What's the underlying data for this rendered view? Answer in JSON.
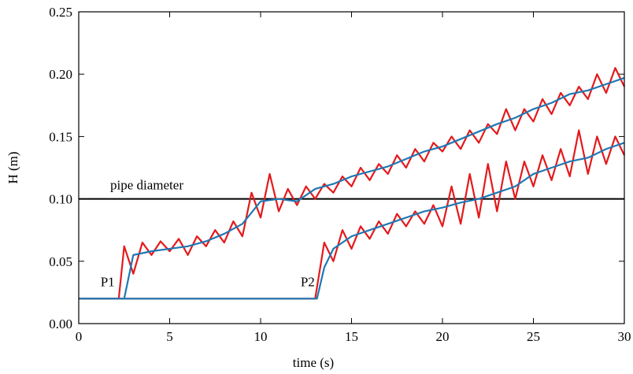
{
  "chart_data": {
    "type": "line",
    "xlabel": "time (s)",
    "ylabel": "H (m)",
    "xlim": [
      0,
      30
    ],
    "ylim": [
      0,
      0.25
    ],
    "xticks": [
      0,
      5,
      10,
      15,
      20,
      25,
      30
    ],
    "yticks": [
      {
        "value": 0,
        "label": "0.00"
      },
      0.05,
      {
        "value": 0.1,
        "label": "0.10"
      },
      0.15,
      {
        "value": 0.2,
        "label": "0.20"
      },
      0.25
    ],
    "grid": false,
    "reference_line": {
      "value": 0.1,
      "label": "pipe diameter",
      "color": "#000000"
    },
    "annotations": [
      {
        "text": "P1",
        "x": 1.2,
        "y": 0.03
      },
      {
        "text": "P2",
        "x": 12.2,
        "y": 0.03
      }
    ],
    "series": [
      {
        "color": "#e31a1c",
        "x": [
          0,
          2.2,
          2.5,
          3,
          3.5,
          4,
          4.5,
          5,
          5.5,
          6,
          6.5,
          7,
          7.5,
          8,
          8.5,
          9,
          9.5,
          10,
          10.5,
          11,
          11.5,
          12,
          12.5,
          13,
          13.5,
          14,
          14.5,
          15,
          15.5,
          16,
          16.5,
          17,
          17.5,
          18,
          18.5,
          19,
          19.5,
          20,
          20.5,
          21,
          21.5,
          22,
          22.5,
          23,
          23.5,
          24,
          24.5,
          25,
          25.5,
          26,
          26.5,
          27,
          27.5,
          28,
          28.5,
          29,
          29.5,
          30
        ],
        "values": [
          0.02,
          0.02,
          0.062,
          0.04,
          0.065,
          0.055,
          0.066,
          0.058,
          0.068,
          0.055,
          0.07,
          0.062,
          0.075,
          0.065,
          0.082,
          0.07,
          0.105,
          0.085,
          0.12,
          0.09,
          0.108,
          0.095,
          0.11,
          0.1,
          0.112,
          0.105,
          0.118,
          0.11,
          0.125,
          0.115,
          0.128,
          0.12,
          0.135,
          0.125,
          0.14,
          0.13,
          0.145,
          0.138,
          0.15,
          0.14,
          0.155,
          0.145,
          0.16,
          0.152,
          0.172,
          0.155,
          0.172,
          0.162,
          0.18,
          0.168,
          0.185,
          0.175,
          0.19,
          0.18,
          0.2,
          0.185,
          0.205,
          0.19
        ]
      },
      {
        "color": "#1f78b4",
        "x": [
          0,
          2.5,
          3,
          4,
          5,
          6,
          7,
          8,
          9,
          10,
          11,
          12,
          13,
          14,
          15,
          16,
          17,
          18,
          19,
          20,
          21,
          22,
          23,
          24,
          25,
          26,
          27,
          28,
          29,
          30
        ],
        "values": [
          0.02,
          0.02,
          0.055,
          0.058,
          0.06,
          0.062,
          0.066,
          0.072,
          0.08,
          0.098,
          0.1,
          0.098,
          0.108,
          0.112,
          0.118,
          0.122,
          0.126,
          0.132,
          0.138,
          0.142,
          0.148,
          0.154,
          0.16,
          0.165,
          0.172,
          0.177,
          0.184,
          0.187,
          0.192,
          0.197
        ]
      },
      {
        "color": "#e31a1c",
        "x": [
          0,
          13,
          13.5,
          14,
          14.5,
          15,
          15.5,
          16,
          16.5,
          17,
          17.5,
          18,
          18.5,
          19,
          19.5,
          20,
          20.5,
          21,
          21.5,
          22,
          22.5,
          23,
          23.5,
          24,
          24.5,
          25,
          25.5,
          26,
          26.5,
          27,
          27.5,
          28,
          28.5,
          29,
          29.5,
          30
        ],
        "values": [
          0.02,
          0.02,
          0.065,
          0.05,
          0.075,
          0.06,
          0.078,
          0.068,
          0.082,
          0.072,
          0.088,
          0.078,
          0.09,
          0.08,
          0.095,
          0.078,
          0.11,
          0.08,
          0.12,
          0.085,
          0.128,
          0.09,
          0.13,
          0.1,
          0.13,
          0.11,
          0.135,
          0.115,
          0.14,
          0.118,
          0.155,
          0.12,
          0.15,
          0.128,
          0.15,
          0.135
        ]
      },
      {
        "color": "#1f78b4",
        "x": [
          0,
          13.1,
          13.5,
          14,
          15,
          16,
          17,
          18,
          19,
          20,
          21,
          22,
          23,
          24,
          25,
          26,
          27,
          28,
          29,
          30
        ],
        "values": [
          0.02,
          0.02,
          0.045,
          0.06,
          0.07,
          0.075,
          0.08,
          0.085,
          0.09,
          0.093,
          0.097,
          0.1,
          0.105,
          0.11,
          0.12,
          0.125,
          0.13,
          0.133,
          0.14,
          0.145
        ]
      }
    ]
  }
}
